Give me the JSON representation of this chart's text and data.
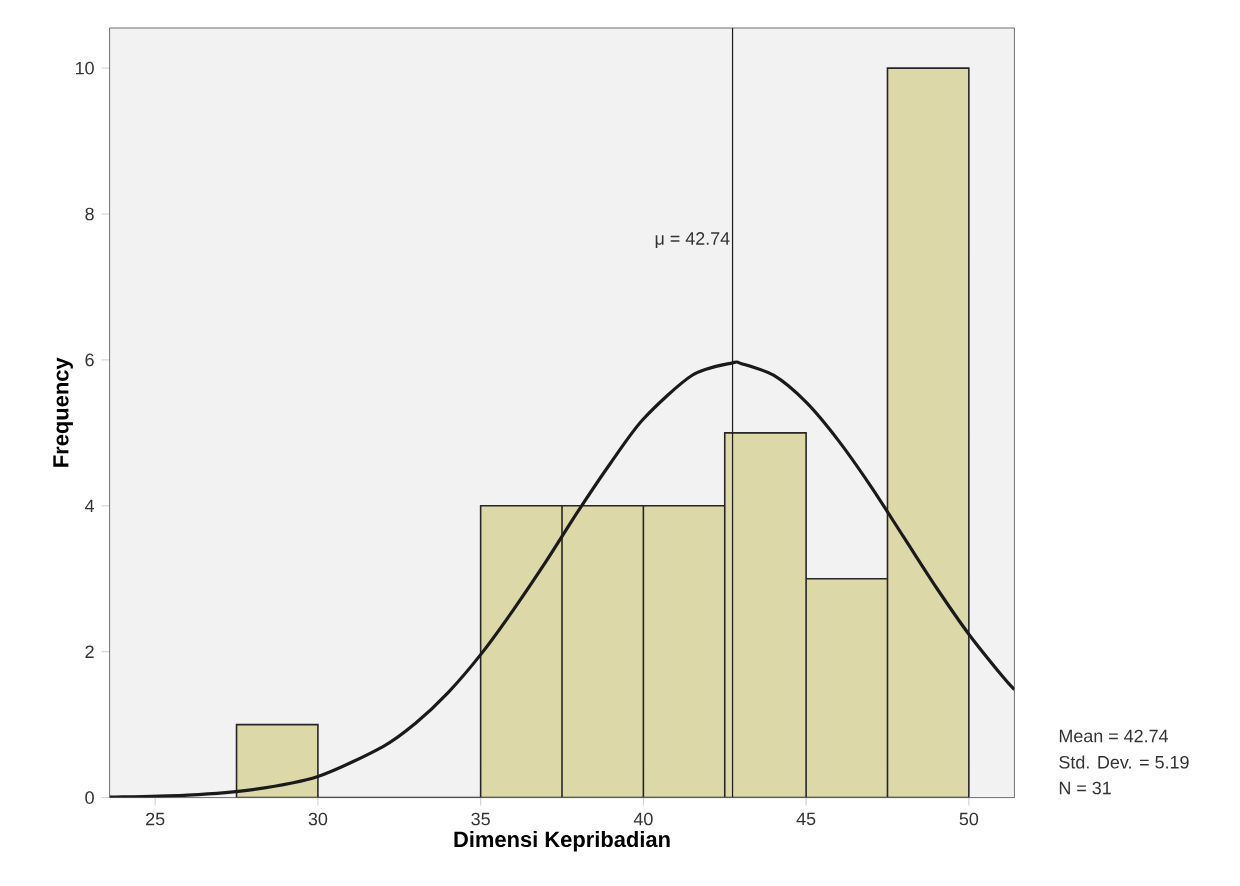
{
  "chart_data": {
    "type": "histogram",
    "xlabel": "Dimensi Kepribadian",
    "ylabel": "Frequency",
    "bins": [
      27.5,
      30,
      32.5,
      35,
      37.5,
      40,
      42.5,
      45,
      47.5,
      50
    ],
    "values": [
      1,
      0,
      0,
      4,
      4,
      4,
      5,
      3,
      10
    ],
    "color": "#dcd8a8",
    "series": [
      {
        "type": "line",
        "color": "#1a1a1a",
        "x": [
          23.6,
          24,
          26,
          28,
          30,
          32,
          33,
          34,
          35,
          36,
          37,
          38,
          39,
          40,
          41.5,
          42.74,
          43,
          44,
          45,
          46,
          47,
          48,
          49,
          50,
          51,
          51.4
        ],
        "values": [
          0.007,
          0.009,
          0.033,
          0.11,
          0.29,
          0.7,
          1.02,
          1.44,
          1.96,
          2.57,
          3.23,
          3.93,
          4.59,
          5.19,
          5.79,
          5.96,
          5.95,
          5.79,
          5.42,
          4.89,
          4.26,
          3.57,
          2.88,
          2.24,
          1.68,
          1.48
        ]
      }
    ],
    "xlim": [
      23.6,
      51.4
    ],
    "ylim": [
      0,
      10.55
    ],
    "xticks": [
      25,
      30,
      35,
      40,
      45,
      50
    ],
    "yticks": [
      0,
      2,
      4,
      6,
      8,
      10
    ],
    "ref_lines": [
      {
        "axis": "x",
        "value": 42.74,
        "label": "μ = 42.74",
        "color": "#1a1a1a"
      }
    ],
    "annotations": [
      "Mean = 42.74",
      "Std. Dev. = 5.19",
      "N = 31"
    ],
    "grid": false
  }
}
